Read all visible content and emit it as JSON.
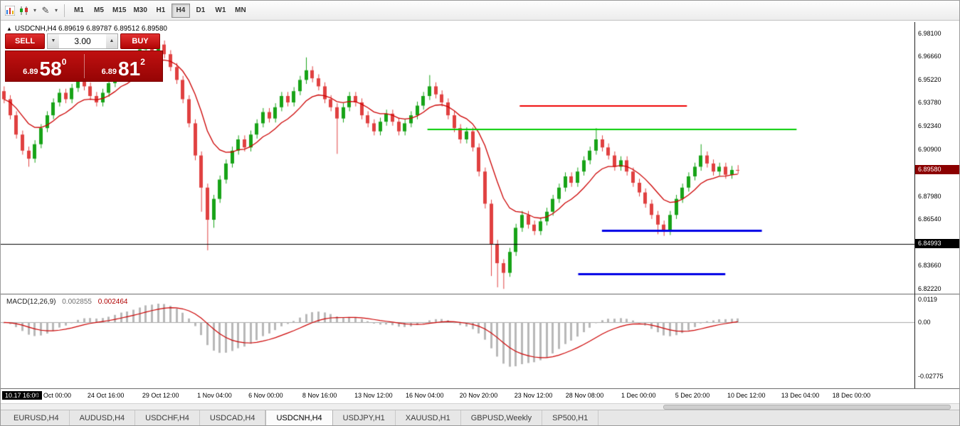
{
  "icons": {
    "dropdown": "▾",
    "triangle_up": "▲",
    "triangle_down": "▼",
    "pencil": "✎",
    "collapse": "▲"
  },
  "toolbar": {
    "timeframes": [
      {
        "label": "M1",
        "active": false
      },
      {
        "label": "M5",
        "active": false
      },
      {
        "label": "M15",
        "active": false
      },
      {
        "label": "M30",
        "active": false
      },
      {
        "label": "H1",
        "active": false
      },
      {
        "label": "H4",
        "active": true
      },
      {
        "label": "D1",
        "active": false
      },
      {
        "label": "W1",
        "active": false
      },
      {
        "label": "MN",
        "active": false
      }
    ]
  },
  "chart": {
    "symbol_title": "USDCNH,H4 6.89619 6.89787 6.89512 6.89580",
    "trade_panel": {
      "sell_label": "SELL",
      "buy_label": "BUY",
      "volume": "3.00",
      "sell_price_prefix": "6.89",
      "sell_price_big": "58",
      "sell_price_sup": "0",
      "buy_price_prefix": "6.89",
      "buy_price_big": "81",
      "buy_price_sup": "2"
    },
    "price_axis": {
      "labels": [
        "6.98100",
        "6.96660",
        "6.95220",
        "6.93780",
        "6.92340",
        "6.90900",
        "6.87980",
        "6.86540",
        "6.83660",
        "6.82220"
      ],
      "current_price": "6.89580",
      "level_price": "6.84993"
    },
    "time_axis": {
      "first_badge": "10.17 16:00",
      "labels": [
        {
          "t": "20 Oct 00:00",
          "f": 0.057
        },
        {
          "t": "24 Oct 16:00",
          "f": 0.115
        },
        {
          "t": "29 Oct 12:00",
          "f": 0.175
        },
        {
          "t": "1 Nov 04:00",
          "f": 0.234
        },
        {
          "t": "6 Nov 00:00",
          "f": 0.29
        },
        {
          "t": "8 Nov 16:00",
          "f": 0.349
        },
        {
          "t": "13 Nov 12:00",
          "f": 0.408
        },
        {
          "t": "16 Nov 04:00",
          "f": 0.464
        },
        {
          "t": "20 Nov 20:00",
          "f": 0.523
        },
        {
          "t": "23 Nov 12:00",
          "f": 0.583
        },
        {
          "t": "28 Nov 08:00",
          "f": 0.639
        },
        {
          "t": "1 Dec 00:00",
          "f": 0.698
        },
        {
          "t": "5 Dec 20:00",
          "f": 0.757
        },
        {
          "t": "10 Dec 12:00",
          "f": 0.816
        },
        {
          "t": "13 Dec 04:00",
          "f": 0.875
        },
        {
          "t": "18 Dec 00:00",
          "f": 0.931
        }
      ]
    },
    "colors": {
      "candle_up": "#17a317",
      "candle_down": "#e04040",
      "ma_line": "#cc0000",
      "macd_hist": "#b8b8b8",
      "macd_signal": "#cc0000",
      "current_badge": "#8b0000",
      "level_badge": "#000000",
      "panel_red": "#b30b0b"
    },
    "chart_data": [
      {
        "type": "candlestick",
        "symbol": "USDCNH",
        "timeframe": "H4",
        "ylim": [
          6.819,
          6.988
        ],
        "x_range": [
          "10.17 16:00",
          "18 Dec 00:00"
        ],
        "plotted_width_fraction": 0.81,
        "current_bar": {
          "open": 6.89619,
          "high": 6.89787,
          "low": 6.89512,
          "close": 6.8958
        },
        "bid": 6.8958,
        "overlays": [
          {
            "name": "moving-average",
            "type": "ema",
            "period": 10,
            "color": "#cc0000"
          }
        ],
        "levels": [
          {
            "name": "red-resistance-line",
            "price": 6.936,
            "color": "#ee0000",
            "x1": 0.568,
            "x2": 0.751,
            "width": 2
          },
          {
            "name": "green-resistance-line",
            "price": 6.921,
            "color": "#00cc00",
            "x1": 0.467,
            "x2": 0.871,
            "width": 2
          },
          {
            "name": "blue-support-line-upper",
            "price": 6.858,
            "color": "#0000e6",
            "x1": 0.658,
            "x2": 0.833,
            "width": 3
          },
          {
            "name": "blue-support-line-lower",
            "price": 6.831,
            "color": "#0000e6",
            "x1": 0.632,
            "x2": 0.793,
            "width": 3
          },
          {
            "name": "black-price-level-line",
            "price": 6.84993,
            "color": "#000000",
            "x1": 0.0,
            "x2": 1.0,
            "width": 1
          }
        ],
        "candles": [
          [
            6.945,
            6.948,
            6.9375,
            6.94
          ],
          [
            6.94,
            6.9425,
            6.9275,
            6.93
          ],
          [
            6.93,
            6.9325,
            6.9155,
            6.918
          ],
          [
            6.918,
            6.9205,
            6.9055,
            6.908
          ],
          [
            6.908,
            6.9105,
            6.898,
            6.903
          ],
          [
            6.903,
            6.9145,
            6.9005,
            6.912
          ],
          [
            6.912,
            6.9245,
            6.9095,
            6.922
          ],
          [
            6.922,
            6.9325,
            6.9195,
            6.93
          ],
          [
            6.93,
            6.9405,
            6.9275,
            6.938
          ],
          [
            6.938,
            6.9465,
            6.9355,
            6.944
          ],
          [
            6.944,
            6.9465,
            6.9375,
            6.94
          ],
          [
            6.94,
            6.9495,
            6.9375,
            6.947
          ],
          [
            6.947,
            6.9555,
            6.9445,
            6.953
          ],
          [
            6.953,
            6.9555,
            6.9455,
            6.948
          ],
          [
            6.948,
            6.9505,
            6.9395,
            6.942
          ],
          [
            6.942,
            6.9445,
            6.9355,
            6.938
          ],
          [
            6.938,
            6.9465,
            6.9355,
            6.944
          ],
          [
            6.944,
            6.9525,
            6.9415,
            6.95
          ],
          [
            6.95,
            6.9585,
            6.9475,
            6.956
          ],
          [
            6.956,
            6.9645,
            6.9535,
            6.962
          ],
          [
            6.962,
            6.9645,
            6.9555,
            6.958
          ],
          [
            6.958,
            6.9675,
            6.9555,
            6.965
          ],
          [
            6.965,
            6.9735,
            6.9625,
            6.971
          ],
          [
            6.971,
            6.979,
            6.9685,
            6.975
          ],
          [
            6.975,
            6.9775,
            6.9675,
            6.97
          ],
          [
            6.97,
            6.9765,
            6.9675,
            6.974
          ],
          [
            6.974,
            6.9765,
            6.9655,
            6.968
          ],
          [
            6.968,
            6.9705,
            6.9575,
            6.96
          ],
          [
            6.96,
            6.9625,
            6.9495,
            6.952
          ],
          [
            6.952,
            6.9545,
            6.9375,
            6.94
          ],
          [
            6.94,
            6.9425,
            6.9225,
            6.925
          ],
          [
            6.925,
            6.9275,
            6.902,
            6.905
          ],
          [
            6.905,
            6.9075,
            6.87,
            6.885
          ],
          [
            6.885,
            6.8875,
            6.846,
            6.865
          ],
          [
            6.865,
            6.8805,
            6.86,
            6.878
          ],
          [
            6.878,
            6.8925,
            6.8755,
            6.89
          ],
          [
            6.89,
            6.9025,
            6.8875,
            6.9
          ],
          [
            6.9,
            6.9105,
            6.8975,
            6.908
          ],
          [
            6.908,
            6.9175,
            6.9055,
            6.915
          ],
          [
            6.915,
            6.9175,
            6.9075,
            6.91
          ],
          [
            6.91,
            6.9205,
            6.9075,
            6.918
          ],
          [
            6.918,
            6.9275,
            6.9155,
            6.925
          ],
          [
            6.925,
            6.9345,
            6.9225,
            6.932
          ],
          [
            6.932,
            6.9345,
            6.9255,
            6.928
          ],
          [
            6.928,
            6.9375,
            6.9255,
            6.935
          ],
          [
            6.935,
            6.9445,
            6.9325,
            6.942
          ],
          [
            6.942,
            6.9445,
            6.9355,
            6.938
          ],
          [
            6.938,
            6.9475,
            6.9355,
            6.945
          ],
          [
            6.945,
            6.9545,
            6.9425,
            6.952
          ],
          [
            6.952,
            6.966,
            6.9495,
            6.958
          ],
          [
            6.958,
            6.9605,
            6.9505,
            6.953
          ],
          [
            6.953,
            6.9555,
            6.9455,
            6.948
          ],
          [
            6.948,
            6.9505,
            6.9375,
            6.94
          ],
          [
            6.94,
            6.9425,
            6.9325,
            6.935
          ],
          [
            6.935,
            6.9375,
            6.906,
            6.928
          ],
          [
            6.928,
            6.9375,
            6.9255,
            6.935
          ],
          [
            6.935,
            6.9445,
            6.9325,
            6.942
          ],
          [
            6.942,
            6.9445,
            6.9355,
            6.938
          ],
          [
            6.938,
            6.9405,
            6.9275,
            6.93
          ],
          [
            6.93,
            6.9325,
            6.9225,
            6.925
          ],
          [
            6.925,
            6.9275,
            6.9175,
            6.92
          ],
          [
            6.92,
            6.9285,
            6.9175,
            6.926
          ],
          [
            6.926,
            6.9335,
            6.9235,
            6.931
          ],
          [
            6.931,
            6.9335,
            6.9235,
            6.926
          ],
          [
            6.926,
            6.9285,
            6.9175,
            6.92
          ],
          [
            6.92,
            6.9275,
            6.9175,
            6.925
          ],
          [
            6.925,
            6.9325,
            6.9225,
            6.93
          ],
          [
            6.93,
            6.9385,
            6.9275,
            6.936
          ],
          [
            6.936,
            6.9445,
            6.9335,
            6.942
          ],
          [
            6.942,
            6.955,
            6.9395,
            6.948
          ],
          [
            6.948,
            6.9505,
            6.9405,
            6.943
          ],
          [
            6.943,
            6.9455,
            6.9355,
            6.938
          ],
          [
            6.938,
            6.9405,
            6.9275,
            6.93
          ],
          [
            6.93,
            6.9325,
            6.9195,
            6.922
          ],
          [
            6.922,
            6.9245,
            6.9125,
            6.915
          ],
          [
            6.915,
            6.9225,
            6.9125,
            6.92
          ],
          [
            6.92,
            6.9225,
            6.9075,
            6.91
          ],
          [
            6.91,
            6.9125,
            6.892,
            6.895
          ],
          [
            6.895,
            6.8975,
            6.872,
            6.875
          ],
          [
            6.875,
            6.8775,
            6.83,
            6.85
          ],
          [
            6.85,
            6.8525,
            6.823,
            6.838
          ],
          [
            6.838,
            6.8405,
            6.822,
            6.832
          ],
          [
            6.832,
            6.8475,
            6.8295,
            6.845
          ],
          [
            6.845,
            6.8625,
            6.8425,
            6.86
          ],
          [
            6.86,
            6.8705,
            6.8575,
            6.868
          ],
          [
            6.868,
            6.8705,
            6.8595,
            6.862
          ],
          [
            6.862,
            6.8645,
            6.8555,
            6.858
          ],
          [
            6.858,
            6.8665,
            6.8555,
            6.864
          ],
          [
            6.864,
            6.8725,
            6.8615,
            6.87
          ],
          [
            6.87,
            6.8805,
            6.8675,
            6.878
          ],
          [
            6.878,
            6.8875,
            6.8755,
            6.885
          ],
          [
            6.885,
            6.8945,
            6.8825,
            6.892
          ],
          [
            6.892,
            6.8945,
            6.8855,
            6.888
          ],
          [
            6.888,
            6.8975,
            6.8855,
            6.895
          ],
          [
            6.895,
            6.9045,
            6.8925,
            6.902
          ],
          [
            6.902,
            6.9105,
            6.8995,
            6.908
          ],
          [
            6.908,
            6.922,
            6.9055,
            6.915
          ],
          [
            6.915,
            6.9175,
            6.9075,
            6.91
          ],
          [
            6.91,
            6.9125,
            6.9025,
            6.905
          ],
          [
            6.905,
            6.9075,
            6.8955,
            6.898
          ],
          [
            6.898,
            6.9045,
            6.8955,
            6.902
          ],
          [
            6.902,
            6.9045,
            6.8925,
            6.895
          ],
          [
            6.895,
            6.8975,
            6.8855,
            6.888
          ],
          [
            6.888,
            6.8905,
            6.8795,
            6.882
          ],
          [
            6.882,
            6.8845,
            6.8725,
            6.875
          ],
          [
            6.875,
            6.8775,
            6.8655,
            6.868
          ],
          [
            6.868,
            6.8705,
            6.856,
            6.862
          ],
          [
            6.862,
            6.8645,
            6.855,
            6.858
          ],
          [
            6.858,
            6.8705,
            6.8555,
            6.868
          ],
          [
            6.868,
            6.8805,
            6.8655,
            6.878
          ],
          [
            6.878,
            6.8875,
            6.8755,
            6.885
          ],
          [
            6.885,
            6.8945,
            6.8825,
            6.892
          ],
          [
            6.892,
            6.9005,
            6.8895,
            6.898
          ],
          [
            6.898,
            6.912,
            6.8955,
            6.905
          ],
          [
            6.905,
            6.9075,
            6.8975,
            6.9
          ],
          [
            6.9,
            6.9025,
            6.8925,
            6.895
          ],
          [
            6.895,
            6.9005,
            6.8925,
            6.898
          ],
          [
            6.898,
            6.9005,
            6.8905,
            6.893
          ],
          [
            6.893,
            6.8985,
            6.8905,
            6.896
          ],
          [
            6.896,
            6.899,
            6.8935,
            6.8958
          ]
        ]
      },
      {
        "type": "macd",
        "params": [
          12,
          26,
          9
        ],
        "source": "computed from candles of chart_data[0]",
        "ylim": [
          -0.034,
          0.0145
        ],
        "current_values": {
          "macd": 0.002855,
          "signal": 0.002464
        },
        "axis_ticks": [
          0.0119,
          0,
          -0.02775
        ],
        "histogram_color": "#b8b8b8",
        "signal_color": "#cc0000"
      }
    ]
  },
  "macd": {
    "label": "MACD(12,26,9)",
    "value_main": "0.002855",
    "value_signal": "0.002464",
    "axis_labels": [
      {
        "t": "0.0119",
        "v": 0.0119
      },
      {
        "t": "0.00",
        "v": 0
      },
      {
        "t": "-0.02775",
        "v": -0.02775
      }
    ]
  },
  "tabs": [
    {
      "label": "EURUSD,H4",
      "active": false
    },
    {
      "label": "AUDUSD,H4",
      "active": false
    },
    {
      "label": "USDCHF,H4",
      "active": false
    },
    {
      "label": "USDCAD,H4",
      "active": false
    },
    {
      "label": "USDCNH,H4",
      "active": true
    },
    {
      "label": "USDJPY,H1",
      "active": false
    },
    {
      "label": "XAUUSD,H1",
      "active": false
    },
    {
      "label": "GBPUSD,Weekly",
      "active": false
    },
    {
      "label": "SP500,H1",
      "active": false
    }
  ]
}
